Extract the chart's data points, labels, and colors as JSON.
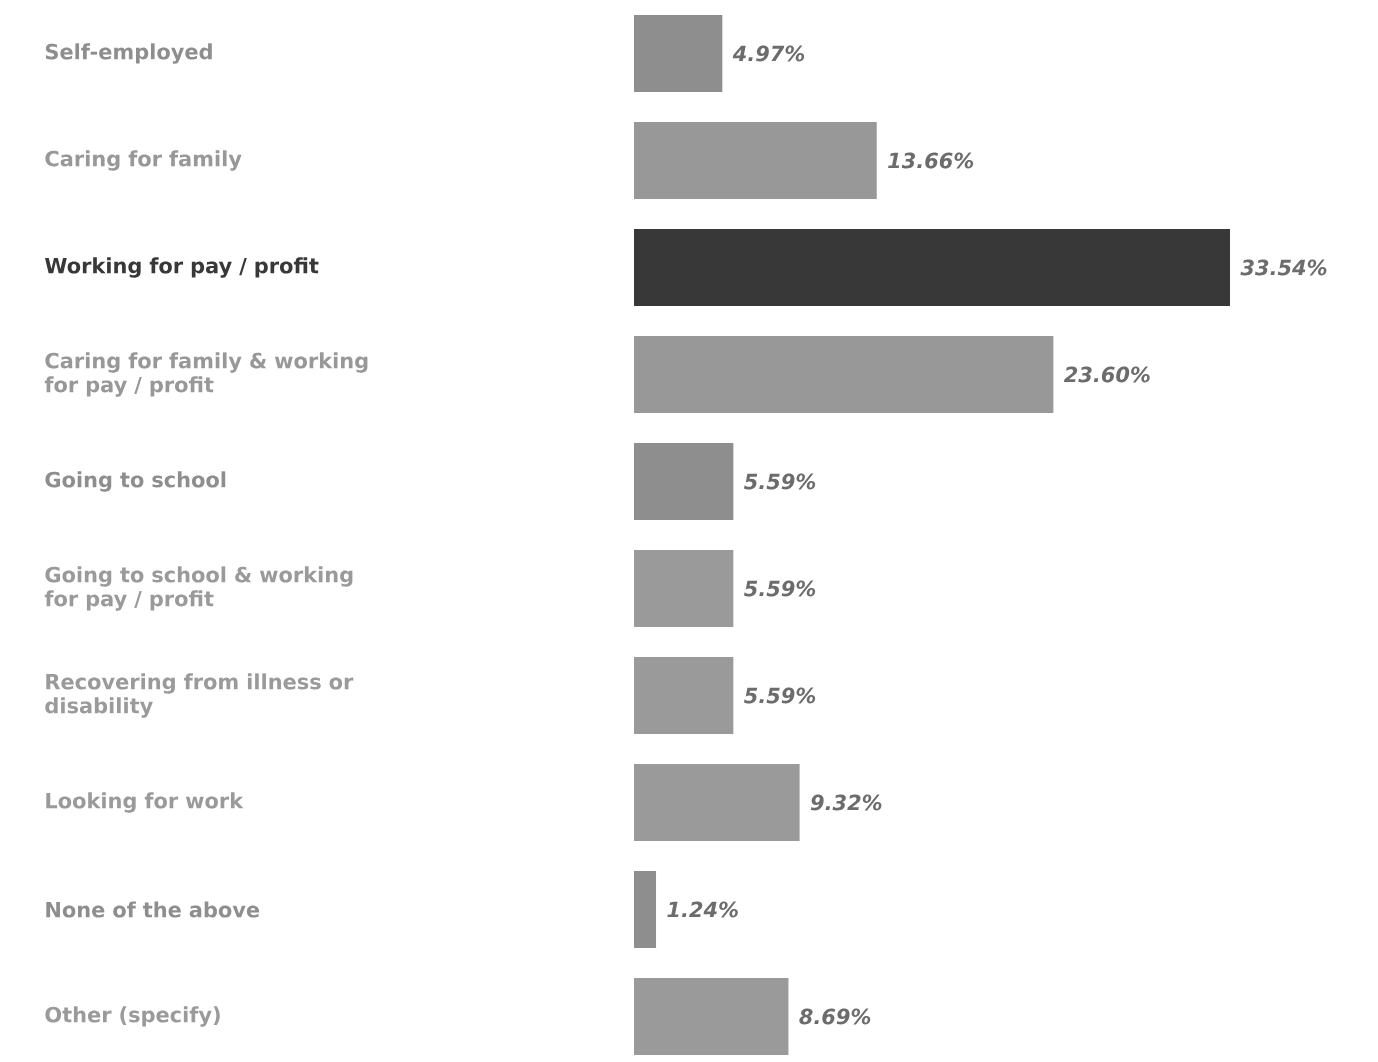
{
  "chart_data": {
    "type": "bar",
    "orientation": "horizontal",
    "categories": [
      "Self-employed",
      "Caring for family",
      "Working for pay / profit",
      "Caring for family & working for pay / profit",
      "Going to school",
      "Going to school & working for pay / profit",
      "Recovering from illness or disability",
      "Looking for work",
      "None of the above",
      "Other (specify)"
    ],
    "values": [
      4.97,
      13.66,
      33.54,
      23.6,
      5.59,
      5.59,
      5.59,
      9.32,
      1.24,
      8.69
    ],
    "value_labels": [
      "4.97%",
      "13.66%",
      "33.54%",
      "23.60%",
      "5.59%",
      "5.59%",
      "5.59%",
      "9.32%",
      "1.24%",
      "8.69%"
    ],
    "colors": [
      "#8e8e8e",
      "#989898",
      "#383838",
      "#989898",
      "#8e8e8e",
      "#9a9a9a",
      "#9a9a9a",
      "#9a9a9a",
      "#8e8e8e",
      "#9a9a9a"
    ],
    "marker": "none"
  }
}
